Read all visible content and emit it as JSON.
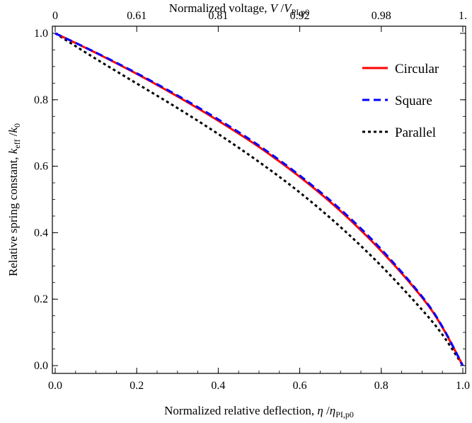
{
  "chart_data": {
    "type": "line",
    "top_axis": {
      "label_prefix": "Normalized voltage, ",
      "label_var": "V",
      "label_sep": " /",
      "label_var2": "V",
      "label_sub": "PI,p0",
      "tick_labels": [
        "0",
        "0.61",
        "0.81",
        "0.92",
        "0.98",
        "1."
      ],
      "tick_positions": [
        0.0,
        0.2,
        0.4,
        0.6,
        0.8,
        1.0
      ]
    },
    "xaxis": {
      "label_prefix": "Normalized relative deflection, ",
      "label_var": "η",
      "label_sep": " /",
      "label_var2": "η",
      "label_sub": "PI,p0",
      "range": [
        0,
        1
      ],
      "ticks": [
        0.0,
        0.2,
        0.4,
        0.6,
        0.8,
        1.0
      ],
      "tick_labels": [
        "0.0",
        "0.2",
        "0.4",
        "0.6",
        "0.8",
        "1.0"
      ]
    },
    "yaxis": {
      "label_prefix": "Relative spring constant, ",
      "label_var": "k",
      "label_sub": "eff",
      "label_sep": " /",
      "label_var2": "k",
      "label_sub2": "0",
      "range": [
        0,
        1
      ],
      "ticks": [
        0.0,
        0.2,
        0.4,
        0.6,
        0.8,
        1.0
      ],
      "tick_labels": [
        "0.0",
        "0.2",
        "0.4",
        "0.6",
        "0.8",
        "1.0"
      ]
    },
    "grid": false,
    "legend_position": "top-right",
    "series": [
      {
        "name": "Circular",
        "color": "#ff0000",
        "dash": "solid",
        "x": [
          0.0,
          0.1,
          0.2,
          0.3,
          0.4,
          0.5,
          0.6,
          0.7,
          0.8,
          0.9,
          0.95,
          1.0
        ],
        "y": [
          1.0,
          0.941,
          0.878,
          0.81,
          0.737,
          0.658,
          0.568,
          0.465,
          0.345,
          0.205,
          0.115,
          0.0
        ]
      },
      {
        "name": "Square",
        "color": "#0000ff",
        "dash": "dashed",
        "x": [
          0.0,
          0.1,
          0.2,
          0.3,
          0.4,
          0.5,
          0.6,
          0.7,
          0.8,
          0.9,
          0.95,
          1.0
        ],
        "y": [
          1.0,
          0.942,
          0.88,
          0.813,
          0.741,
          0.662,
          0.572,
          0.47,
          0.35,
          0.208,
          0.117,
          0.0
        ]
      },
      {
        "name": "Parallel",
        "color": "#000000",
        "dash": "dotted",
        "x": [
          0.0,
          0.1,
          0.2,
          0.3,
          0.4,
          0.5,
          0.6,
          0.7,
          0.8,
          0.9,
          0.95,
          1.0
        ],
        "y": [
          1.0,
          0.923,
          0.849,
          0.775,
          0.697,
          0.613,
          0.521,
          0.417,
          0.3,
          0.168,
          0.093,
          0.0
        ]
      }
    ]
  }
}
